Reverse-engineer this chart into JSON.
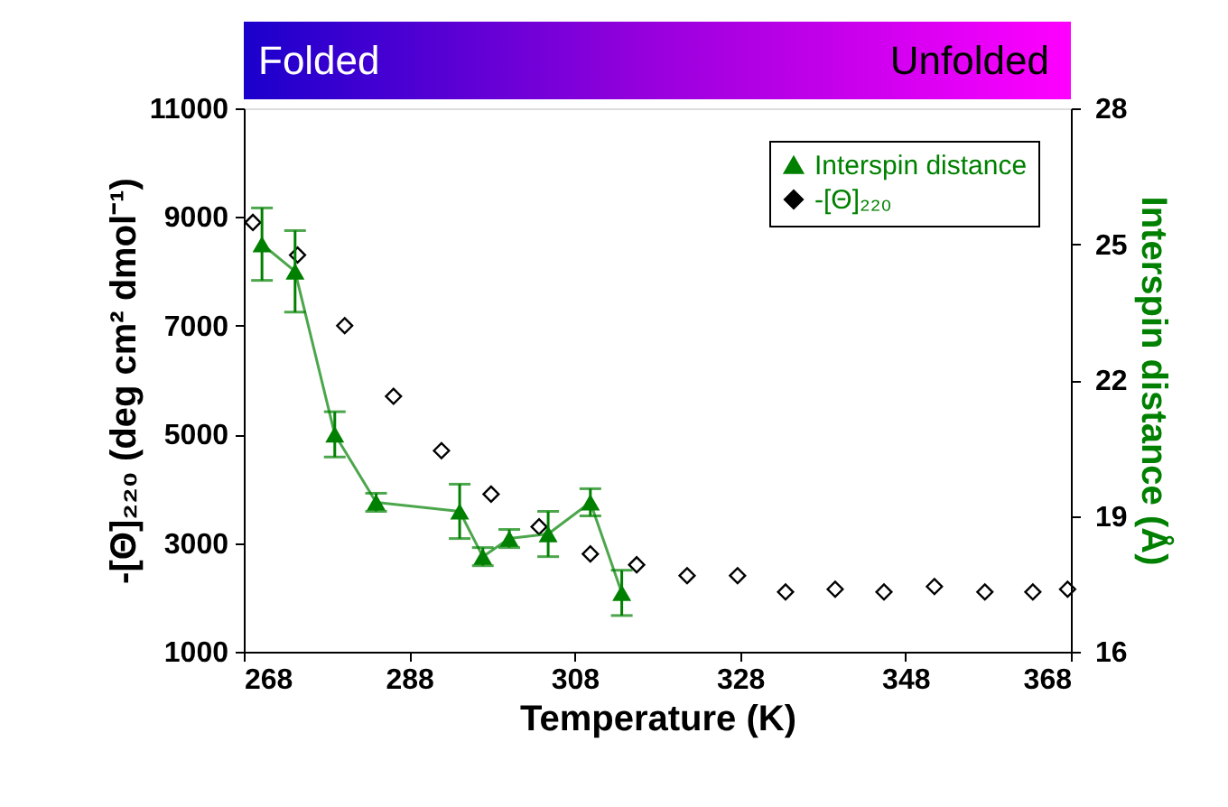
{
  "chart_data": {
    "type": "scatter",
    "xlabel": "Temperature (K)",
    "ylabel": "-[Θ]₂₂₀ (deg cm² dmol⁻¹)",
    "y2label": "Interspin distance (Å)",
    "xlim": [
      268,
      368
    ],
    "xticks": [
      268,
      288,
      308,
      328,
      348,
      368
    ],
    "ylim": [
      1000,
      11000
    ],
    "yticks": [
      1000,
      3000,
      5000,
      7000,
      9000,
      11000
    ],
    "y2lim": [
      16,
      28
    ],
    "y2ticks": [
      16,
      19,
      22,
      25,
      28
    ],
    "grid": false,
    "legend": "top right",
    "annotations": [
      "Folded",
      "Unfolded"
    ],
    "series": [
      {
        "name": "Interspin distance",
        "type": "line",
        "axis": "y2",
        "color": "#008000",
        "marker": "triangle",
        "x": [
          270.2,
          274.2,
          279.0,
          284.0,
          294.1,
          296.9,
          300.1,
          304.8,
          309.9,
          313.7
        ],
        "values": [
          25.0,
          24.4,
          20.8,
          19.3,
          19.1,
          18.1,
          18.5,
          18.6,
          19.3,
          17.3
        ],
        "errors": [
          0.8,
          0.9,
          0.5,
          0.2,
          0.6,
          0.2,
          0.2,
          0.5,
          0.3,
          0.5
        ]
      },
      {
        "name": "-[Θ]₂₂₀",
        "type": "scatter",
        "axis": "y",
        "color": "#000000",
        "marker": "diamond",
        "x": [
          269.1,
          274.5,
          280.2,
          286.1,
          291.9,
          297.9,
          303.7,
          309.9,
          315.5,
          321.6,
          327.7,
          333.5,
          339.5,
          345.4,
          351.5,
          357.6,
          363.4,
          367.6
        ],
        "values": [
          8900,
          8300,
          7000,
          5700,
          4700,
          3900,
          3300,
          2800,
          2600,
          2400,
          2400,
          2100,
          2150,
          2100,
          2200,
          2100,
          2100,
          2150
        ]
      }
    ]
  }
}
